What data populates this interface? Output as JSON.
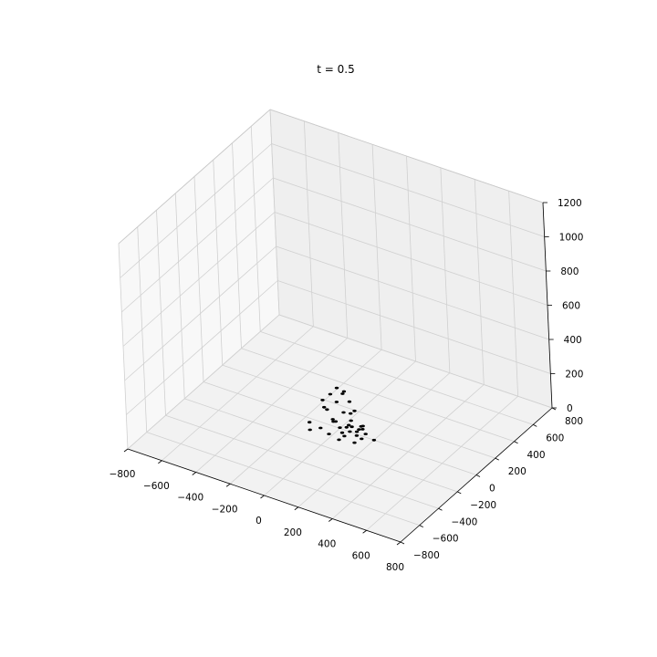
{
  "chart_data": {
    "type": "scatter",
    "projection": "3d",
    "title": "t = 0.5",
    "xlabel": "",
    "ylabel": "",
    "zlabel": "",
    "xlim": [
      -800,
      800
    ],
    "ylim": [
      -800,
      800
    ],
    "zlim": [
      0,
      1200
    ],
    "xticks": [
      "−800",
      "−600",
      "−400",
      "−200",
      "0",
      "200",
      "400",
      "600",
      "800"
    ],
    "yticks": [
      "−800",
      "−600",
      "−400",
      "−200",
      "0",
      "200",
      "400",
      "600",
      "800"
    ],
    "zticks": [
      "0",
      "200",
      "400",
      "600",
      "800",
      "1000",
      "1200"
    ],
    "grid": true,
    "marker_color": "#000000",
    "points": [
      {
        "x": -20,
        "y": 20,
        "z": 220
      },
      {
        "x": 10,
        "y": 40,
        "z": 200
      },
      {
        "x": -60,
        "y": 20,
        "z": 170
      },
      {
        "x": -10,
        "y": 60,
        "z": 170
      },
      {
        "x": 40,
        "y": 40,
        "z": 150
      },
      {
        "x": -90,
        "y": -10,
        "z": 140
      },
      {
        "x": -30,
        "y": 30,
        "z": 130
      },
      {
        "x": 80,
        "y": 20,
        "z": 120
      },
      {
        "x": -60,
        "y": -20,
        "z": 100
      },
      {
        "x": 20,
        "y": 10,
        "z": 95
      },
      {
        "x": 50,
        "y": 30,
        "z": 90
      },
      {
        "x": -100,
        "y": 20,
        "z": 80
      },
      {
        "x": 0,
        "y": -40,
        "z": 60
      },
      {
        "x": -40,
        "y": 0,
        "z": 40
      },
      {
        "x": 120,
        "y": 30,
        "z": 40
      },
      {
        "x": 40,
        "y": 0,
        "z": 20
      },
      {
        "x": 60,
        "y": 20,
        "z": 20
      },
      {
        "x": 100,
        "y": 0,
        "z": 15
      },
      {
        "x": 70,
        "y": -20,
        "z": 15
      },
      {
        "x": 30,
        "y": 40,
        "z": 10
      },
      {
        "x": -150,
        "y": -50,
        "z": 10
      },
      {
        "x": 150,
        "y": -40,
        "z": 10
      },
      {
        "x": 0,
        "y": 0,
        "z": 5
      },
      {
        "x": 90,
        "y": 40,
        "z": 5
      },
      {
        "x": 110,
        "y": -20,
        "z": 5
      },
      {
        "x": 140,
        "y": 20,
        "z": 5
      },
      {
        "x": -80,
        "y": -60,
        "z": 5
      },
      {
        "x": 60,
        "y": -60,
        "z": 5
      },
      {
        "x": 30,
        "y": -30,
        "z": 0
      },
      {
        "x": -20,
        "y": -80,
        "z": 0
      },
      {
        "x": 50,
        "y": -100,
        "z": 0
      },
      {
        "x": 130,
        "y": -80,
        "z": 0
      },
      {
        "x": 200,
        "y": 0,
        "z": 0
      },
      {
        "x": 80,
        "y": 80,
        "z": 0
      },
      {
        "x": -120,
        "y": -100,
        "z": 0
      },
      {
        "x": 10,
        "y": 100,
        "z": 0
      },
      {
        "x": 100,
        "y": 60,
        "z": 0
      },
      {
        "x": -60,
        "y": 40,
        "z": 0
      }
    ]
  }
}
